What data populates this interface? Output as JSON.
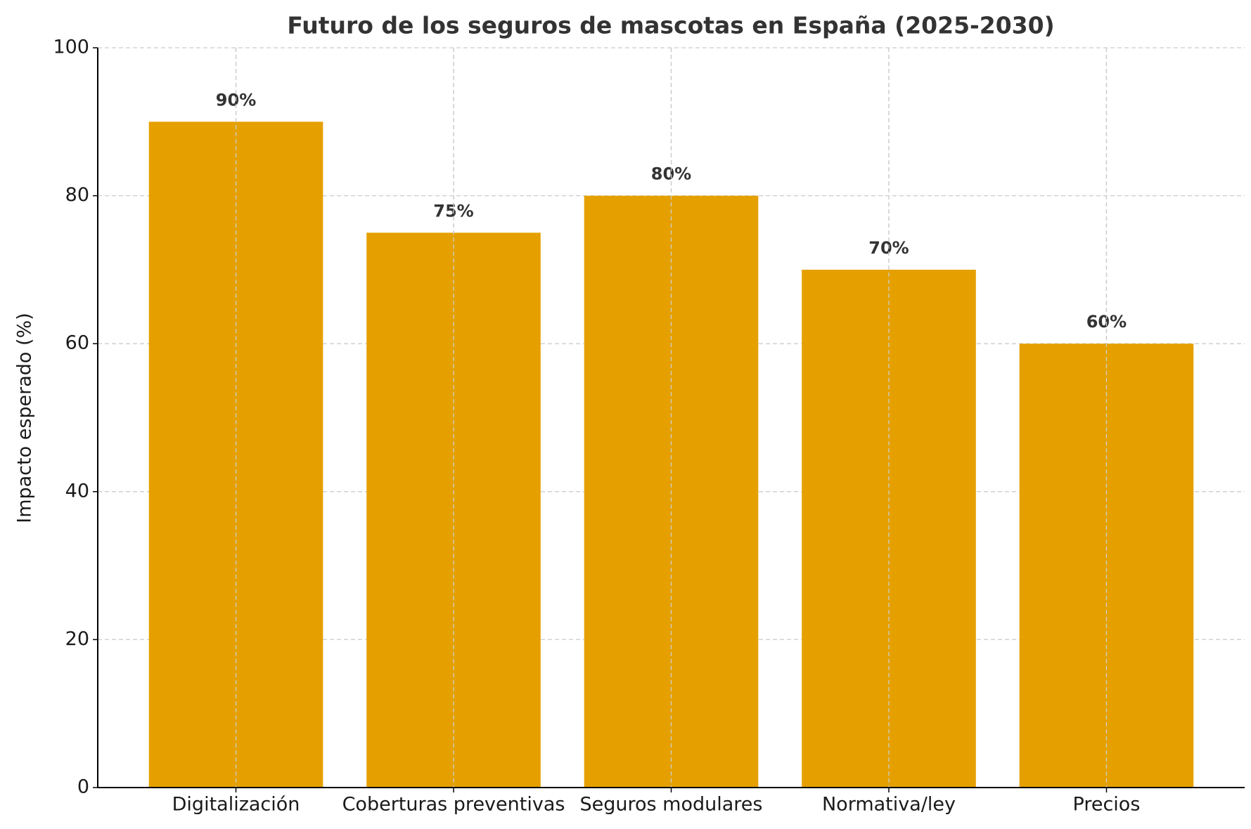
{
  "chart_data": {
    "type": "bar",
    "title": "Futuro de los seguros de mascotas en España (2025-2030)",
    "y_label": "Impacto esperado (%)",
    "categories": [
      "Digitalización",
      "Coberturas preventivas",
      "Seguros modulares",
      "Normativa/ley",
      "Precios"
    ],
    "values": [
      90,
      75,
      80,
      70,
      60
    ],
    "value_labels": [
      "90%",
      "75%",
      "80%",
      "70%",
      "60%"
    ],
    "color": "#e5a000",
    "ylim": [
      0,
      100
    ],
    "yticks": [
      0,
      20,
      40,
      60,
      80,
      100
    ],
    "grid": true
  }
}
